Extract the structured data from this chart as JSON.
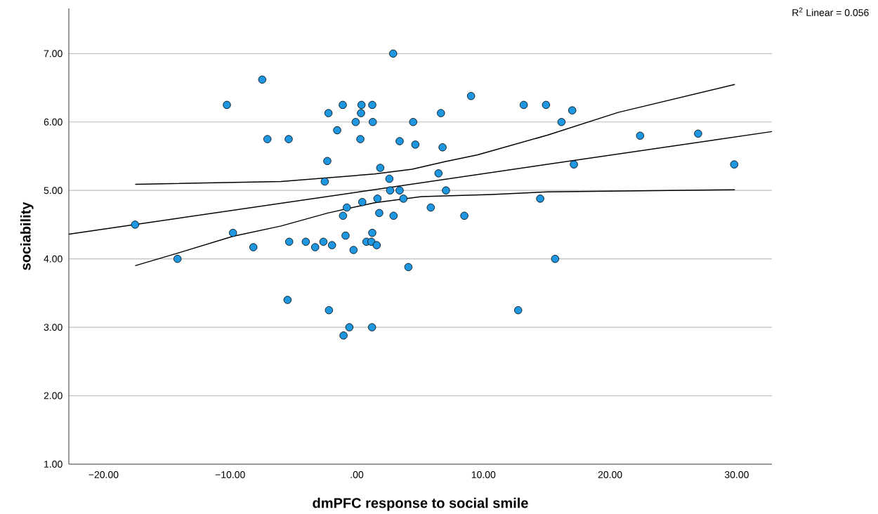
{
  "chart_data": {
    "type": "scatter",
    "xlabel": "dmPFC response to social smile",
    "ylabel": "sociability",
    "annotations": [
      "R$^{2}$ Linear = 0.056"
    ],
    "xlim": [
      -22.74,
      32.78
    ],
    "ylim": [
      1,
      7.66
    ],
    "xticks": [
      {
        "value": -20,
        "label": "−20.00"
      },
      {
        "value": -10,
        "label": "−10.00"
      },
      {
        "value": 0,
        "label": ".00"
      },
      {
        "value": 10,
        "label": "10.00"
      },
      {
        "value": 20,
        "label": "20.00"
      },
      {
        "value": 30,
        "label": "30.00"
      }
    ],
    "yticks": [
      {
        "value": 1,
        "label": "1.00"
      },
      {
        "value": 2,
        "label": "2.00"
      },
      {
        "value": 3,
        "label": "3.00"
      },
      {
        "value": 4,
        "label": "4.00"
      },
      {
        "value": 5,
        "label": "5.00"
      },
      {
        "value": 6,
        "label": "6.00"
      },
      {
        "value": 7,
        "label": "7.00"
      }
    ],
    "grid": "y",
    "series": [
      {
        "color": "#1e96e0",
        "marker": "circle",
        "x": [
          -7.47,
          -10.26,
          -7.06,
          -5.38,
          -17.51,
          -9.78,
          -8.17,
          -14.16,
          -5.34,
          -5.47,
          2.87,
          9.02,
          -1.11,
          0.37,
          1.22,
          -2.24,
          0.33,
          6.64,
          -0.09,
          1.26,
          4.45,
          -1.55,
          0.28,
          3.38,
          4.62,
          6.77,
          -2.33,
          1.85,
          6.45,
          2.57,
          -2.53,
          2.63,
          3.38,
          7.04,
          1.63,
          3.68,
          0.43,
          -0.79,
          5.84,
          -1.09,
          1.77,
          2.9,
          8.49,
          1.22,
          -0.89,
          -4.03,
          -3.29,
          -2.64,
          -1.96,
          -0.26,
          0.76,
          1.15,
          1.57,
          4.07,
          -2.2,
          -0.59,
          1.2,
          -1.05,
          13.18,
          14.94,
          17.01,
          16.16,
          22.37,
          26.95,
          17.14,
          29.8,
          14.48,
          15.66,
          12.74
        ],
        "values": [
          6.62,
          6.25,
          5.75,
          5.75,
          4.5,
          4.38,
          4.17,
          4.0,
          4.25,
          3.4,
          7.0,
          6.38,
          6.25,
          6.25,
          6.25,
          6.13,
          6.13,
          6.13,
          6.0,
          6.0,
          6.0,
          5.88,
          5.75,
          5.72,
          5.67,
          5.63,
          5.43,
          5.33,
          5.25,
          5.17,
          5.13,
          5.0,
          5.0,
          5.0,
          4.88,
          4.88,
          4.83,
          4.75,
          4.75,
          4.63,
          4.67,
          4.63,
          4.63,
          4.38,
          4.34,
          4.25,
          4.17,
          4.25,
          4.2,
          4.13,
          4.25,
          4.25,
          4.2,
          3.88,
          3.25,
          3.0,
          3.0,
          2.88,
          6.25,
          6.25,
          6.17,
          6.0,
          5.8,
          5.83,
          5.38,
          5.38,
          4.88,
          4.0,
          3.25
        ]
      },
      {
        "type": "line",
        "color": "#000000",
        "marker": "none",
        "x": [
          -22.74,
          32.78
        ],
        "values": [
          4.36,
          5.86
        ]
      },
      {
        "type": "line",
        "color": "#000000",
        "marker": "none",
        "x": [
          -17.5,
          -5.99,
          1.4,
          4.36,
          6.95,
          9.54,
          15.09,
          20.63,
          29.85
        ],
        "values": [
          5.09,
          5.13,
          5.24,
          5.31,
          5.42,
          5.52,
          5.81,
          6.14,
          6.55
        ]
      },
      {
        "type": "line",
        "color": "#000000",
        "marker": "none",
        "x": [
          -17.5,
          -14.03,
          -9.78,
          -5.99,
          -2.29,
          1.4,
          5.1,
          10.65,
          15.09,
          29.85
        ],
        "values": [
          3.9,
          4.09,
          4.33,
          4.48,
          4.67,
          4.82,
          4.91,
          4.94,
          4.98,
          5.01
        ]
      }
    ]
  }
}
